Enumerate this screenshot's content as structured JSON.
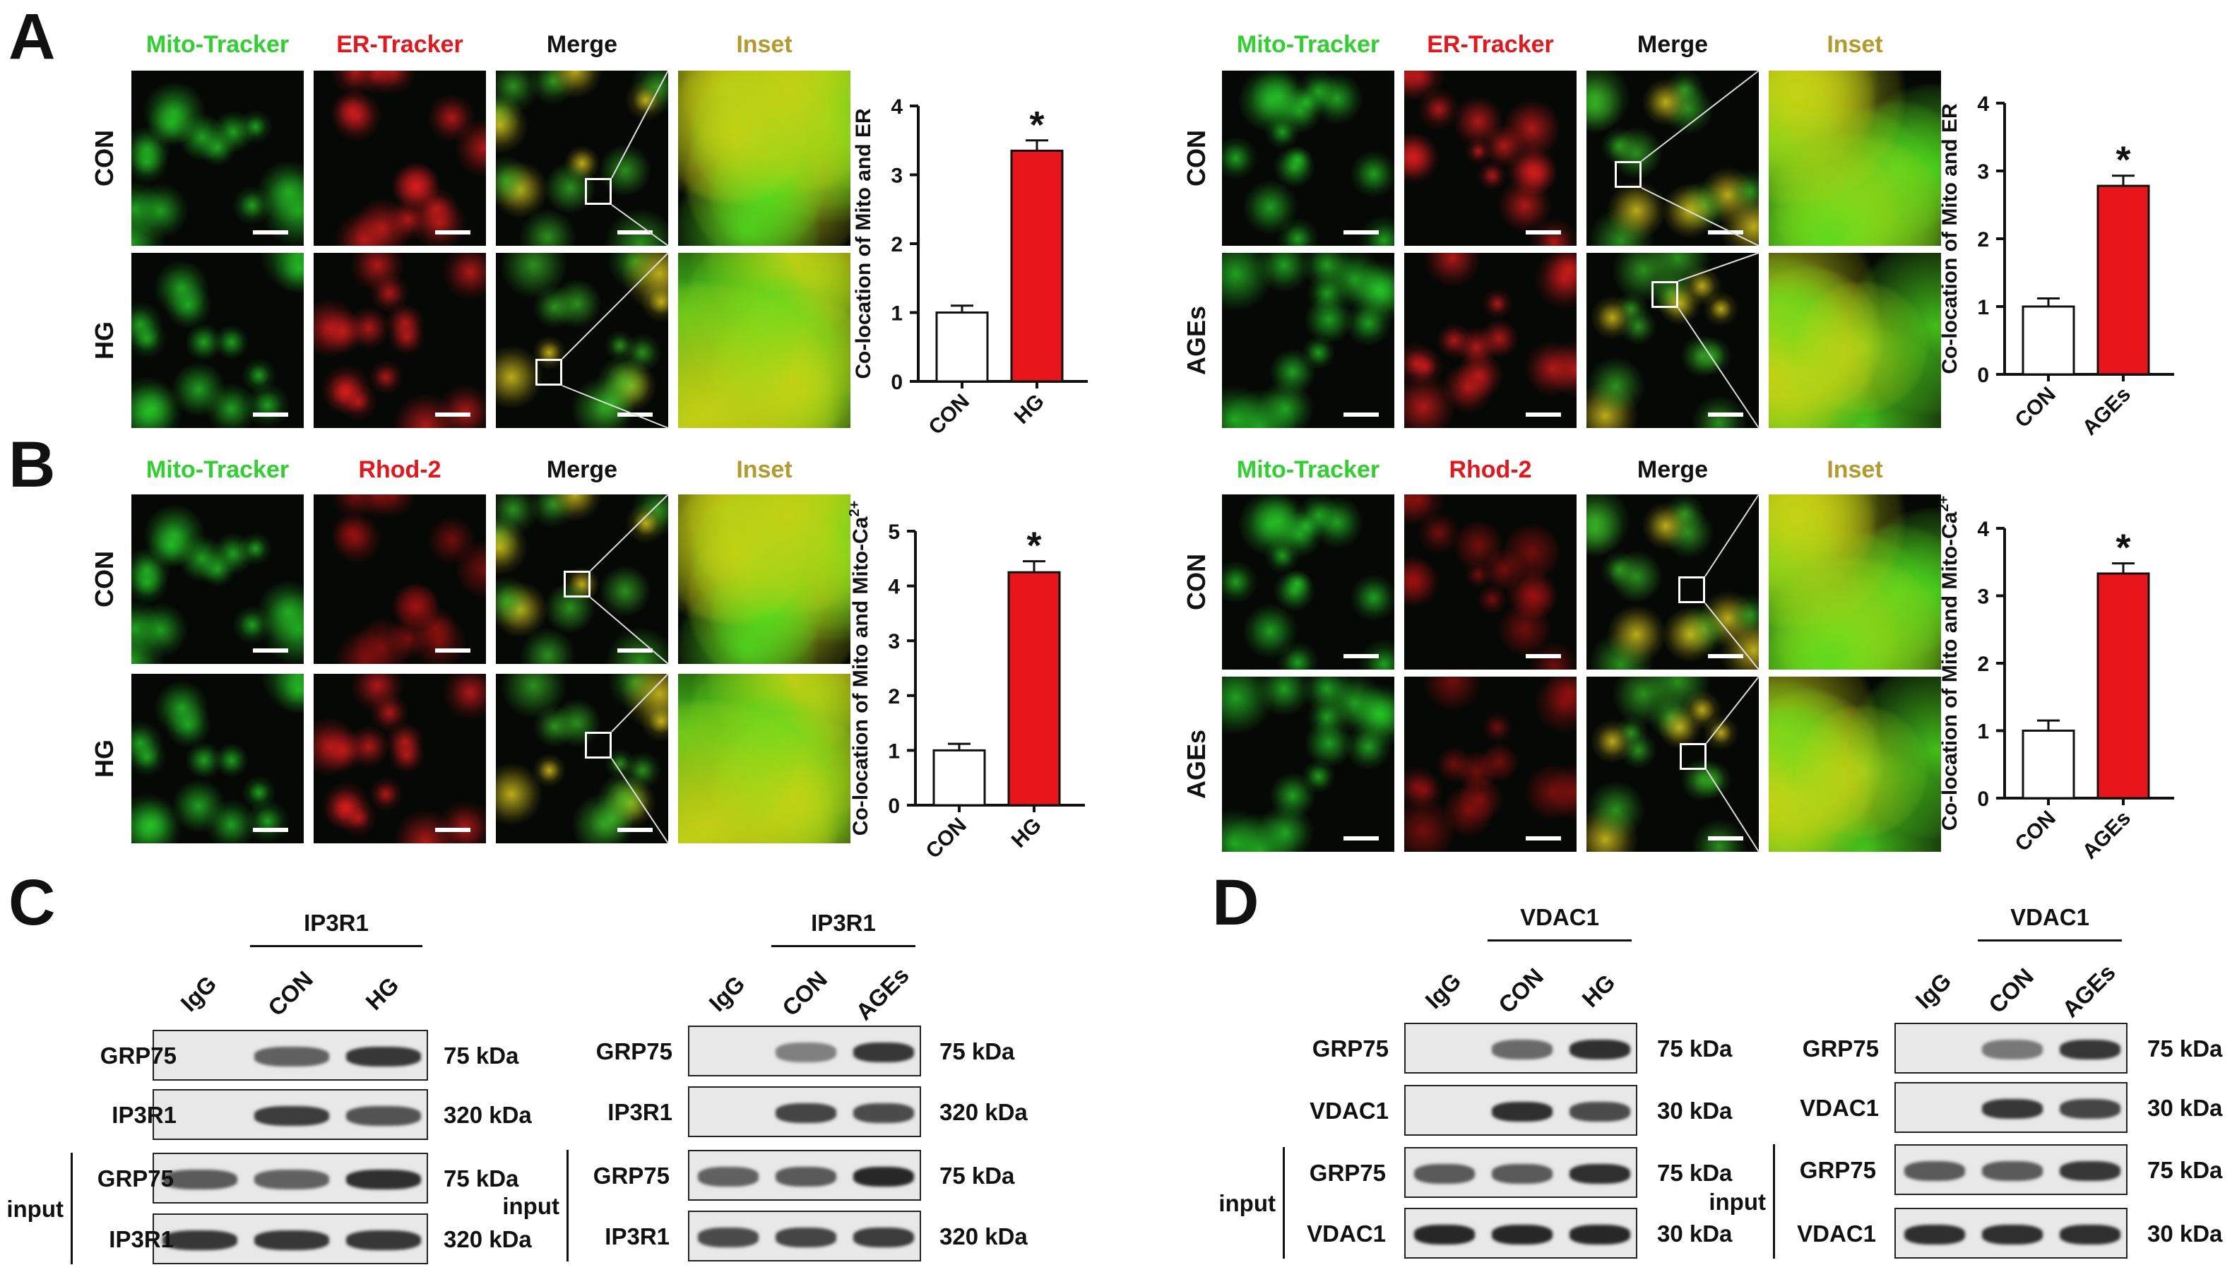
{
  "panels": {
    "A": {
      "letter": "A"
    },
    "B": {
      "letter": "B"
    },
    "C": {
      "letter": "C"
    },
    "D": {
      "letter": "D"
    }
  },
  "colors": {
    "green": "#2ed12e",
    "red": "#e8151b",
    "inset": "#b39a2a",
    "merge": "#111111",
    "bar_red": "#e8151b"
  },
  "A_left": {
    "headers": [
      "Mito-Tracker",
      "ER-Tracker",
      "Merge",
      "Inset"
    ],
    "rows": [
      "CON",
      "HG"
    ]
  },
  "A_right": {
    "headers": [
      "Mito-Tracker",
      "ER-Tracker",
      "Merge",
      "Inset"
    ],
    "rows": [
      "CON",
      "AGEs"
    ]
  },
  "B_left": {
    "headers": [
      "Mito-Tracker",
      "Rhod-2",
      "Merge",
      "Inset"
    ],
    "rows": [
      "CON",
      "HG"
    ]
  },
  "B_right": {
    "headers": [
      "Mito-Tracker",
      "Rhod-2",
      "Merge",
      "Inset"
    ],
    "rows": [
      "CON",
      "AGEs"
    ]
  },
  "chart_data": [
    {
      "type": "bar",
      "panel": "A-left",
      "categories": [
        "CON",
        "HG"
      ],
      "values": [
        1.0,
        3.35
      ],
      "errors": [
        0.1,
        0.15
      ],
      "significance": [
        "",
        "*"
      ],
      "ylabel": "Co-location of Mito and ER",
      "ylim": [
        0,
        4
      ],
      "yticks": [
        "0",
        "1",
        "2",
        "3",
        "4"
      ]
    },
    {
      "type": "bar",
      "panel": "A-right",
      "categories": [
        "CON",
        "AGEs"
      ],
      "values": [
        1.0,
        2.78
      ],
      "errors": [
        0.12,
        0.15
      ],
      "significance": [
        "",
        "*"
      ],
      "ylabel": "Co-location of Mito and ER",
      "ylim": [
        0,
        4
      ],
      "yticks": [
        "0",
        "1",
        "2",
        "3",
        "4"
      ]
    },
    {
      "type": "bar",
      "panel": "B-left",
      "categories": [
        "CON",
        "HG"
      ],
      "values": [
        1.0,
        4.25
      ],
      "errors": [
        0.12,
        0.2
      ],
      "significance": [
        "",
        "*"
      ],
      "ylabel": "Co-location of Mito and Mito-Ca2+",
      "ylim": [
        0,
        5
      ],
      "yticks": [
        "0",
        "1",
        "2",
        "3",
        "4",
        "5"
      ]
    },
    {
      "type": "bar",
      "panel": "B-right",
      "categories": [
        "CON",
        "AGEs"
      ],
      "values": [
        1.0,
        3.33
      ],
      "errors": [
        0.15,
        0.15
      ],
      "significance": [
        "",
        "*"
      ],
      "ylabel": "Co-location of Mito and Mito-Ca2+",
      "ylim": [
        0,
        4
      ],
      "yticks": [
        "0",
        "1",
        "2",
        "3",
        "4"
      ]
    }
  ],
  "C_left": {
    "ip_label": "IP3R1",
    "lanes": [
      "IgG",
      "CON",
      "HG"
    ],
    "rows": [
      "GRP75",
      "IP3R1"
    ],
    "input_label": "input",
    "input_rows": [
      "GRP75",
      "IP3R1"
    ],
    "kda": [
      "75 kDa",
      "320 kDa",
      "75 kDa",
      "320 kDa"
    ]
  },
  "C_right": {
    "ip_label": "IP3R1",
    "lanes": [
      "IgG",
      "CON",
      "AGEs"
    ],
    "rows": [
      "GRP75",
      "IP3R1"
    ],
    "input_label": "input",
    "input_rows": [
      "GRP75",
      "IP3R1"
    ],
    "kda": [
      "75 kDa",
      "320 kDa",
      "75 kDa",
      "320 kDa"
    ]
  },
  "D_left": {
    "ip_label": "VDAC1",
    "lanes": [
      "IgG",
      "CON",
      "HG"
    ],
    "rows": [
      "GRP75",
      "VDAC1"
    ],
    "input_label": "input",
    "input_rows": [
      "GRP75",
      "VDAC1"
    ],
    "kda": [
      "75 kDa",
      "30 kDa",
      "75 kDa",
      "30 kDa"
    ]
  },
  "D_right": {
    "ip_label": "VDAC1",
    "lanes": [
      "IgG",
      "CON",
      "AGEs"
    ],
    "rows": [
      "GRP75",
      "VDAC1"
    ],
    "input_label": "input",
    "input_rows": [
      "GRP75",
      "VDAC1"
    ],
    "kda": [
      "75 kDa",
      "30 kDa",
      "75 kDa",
      "30 kDa"
    ]
  }
}
